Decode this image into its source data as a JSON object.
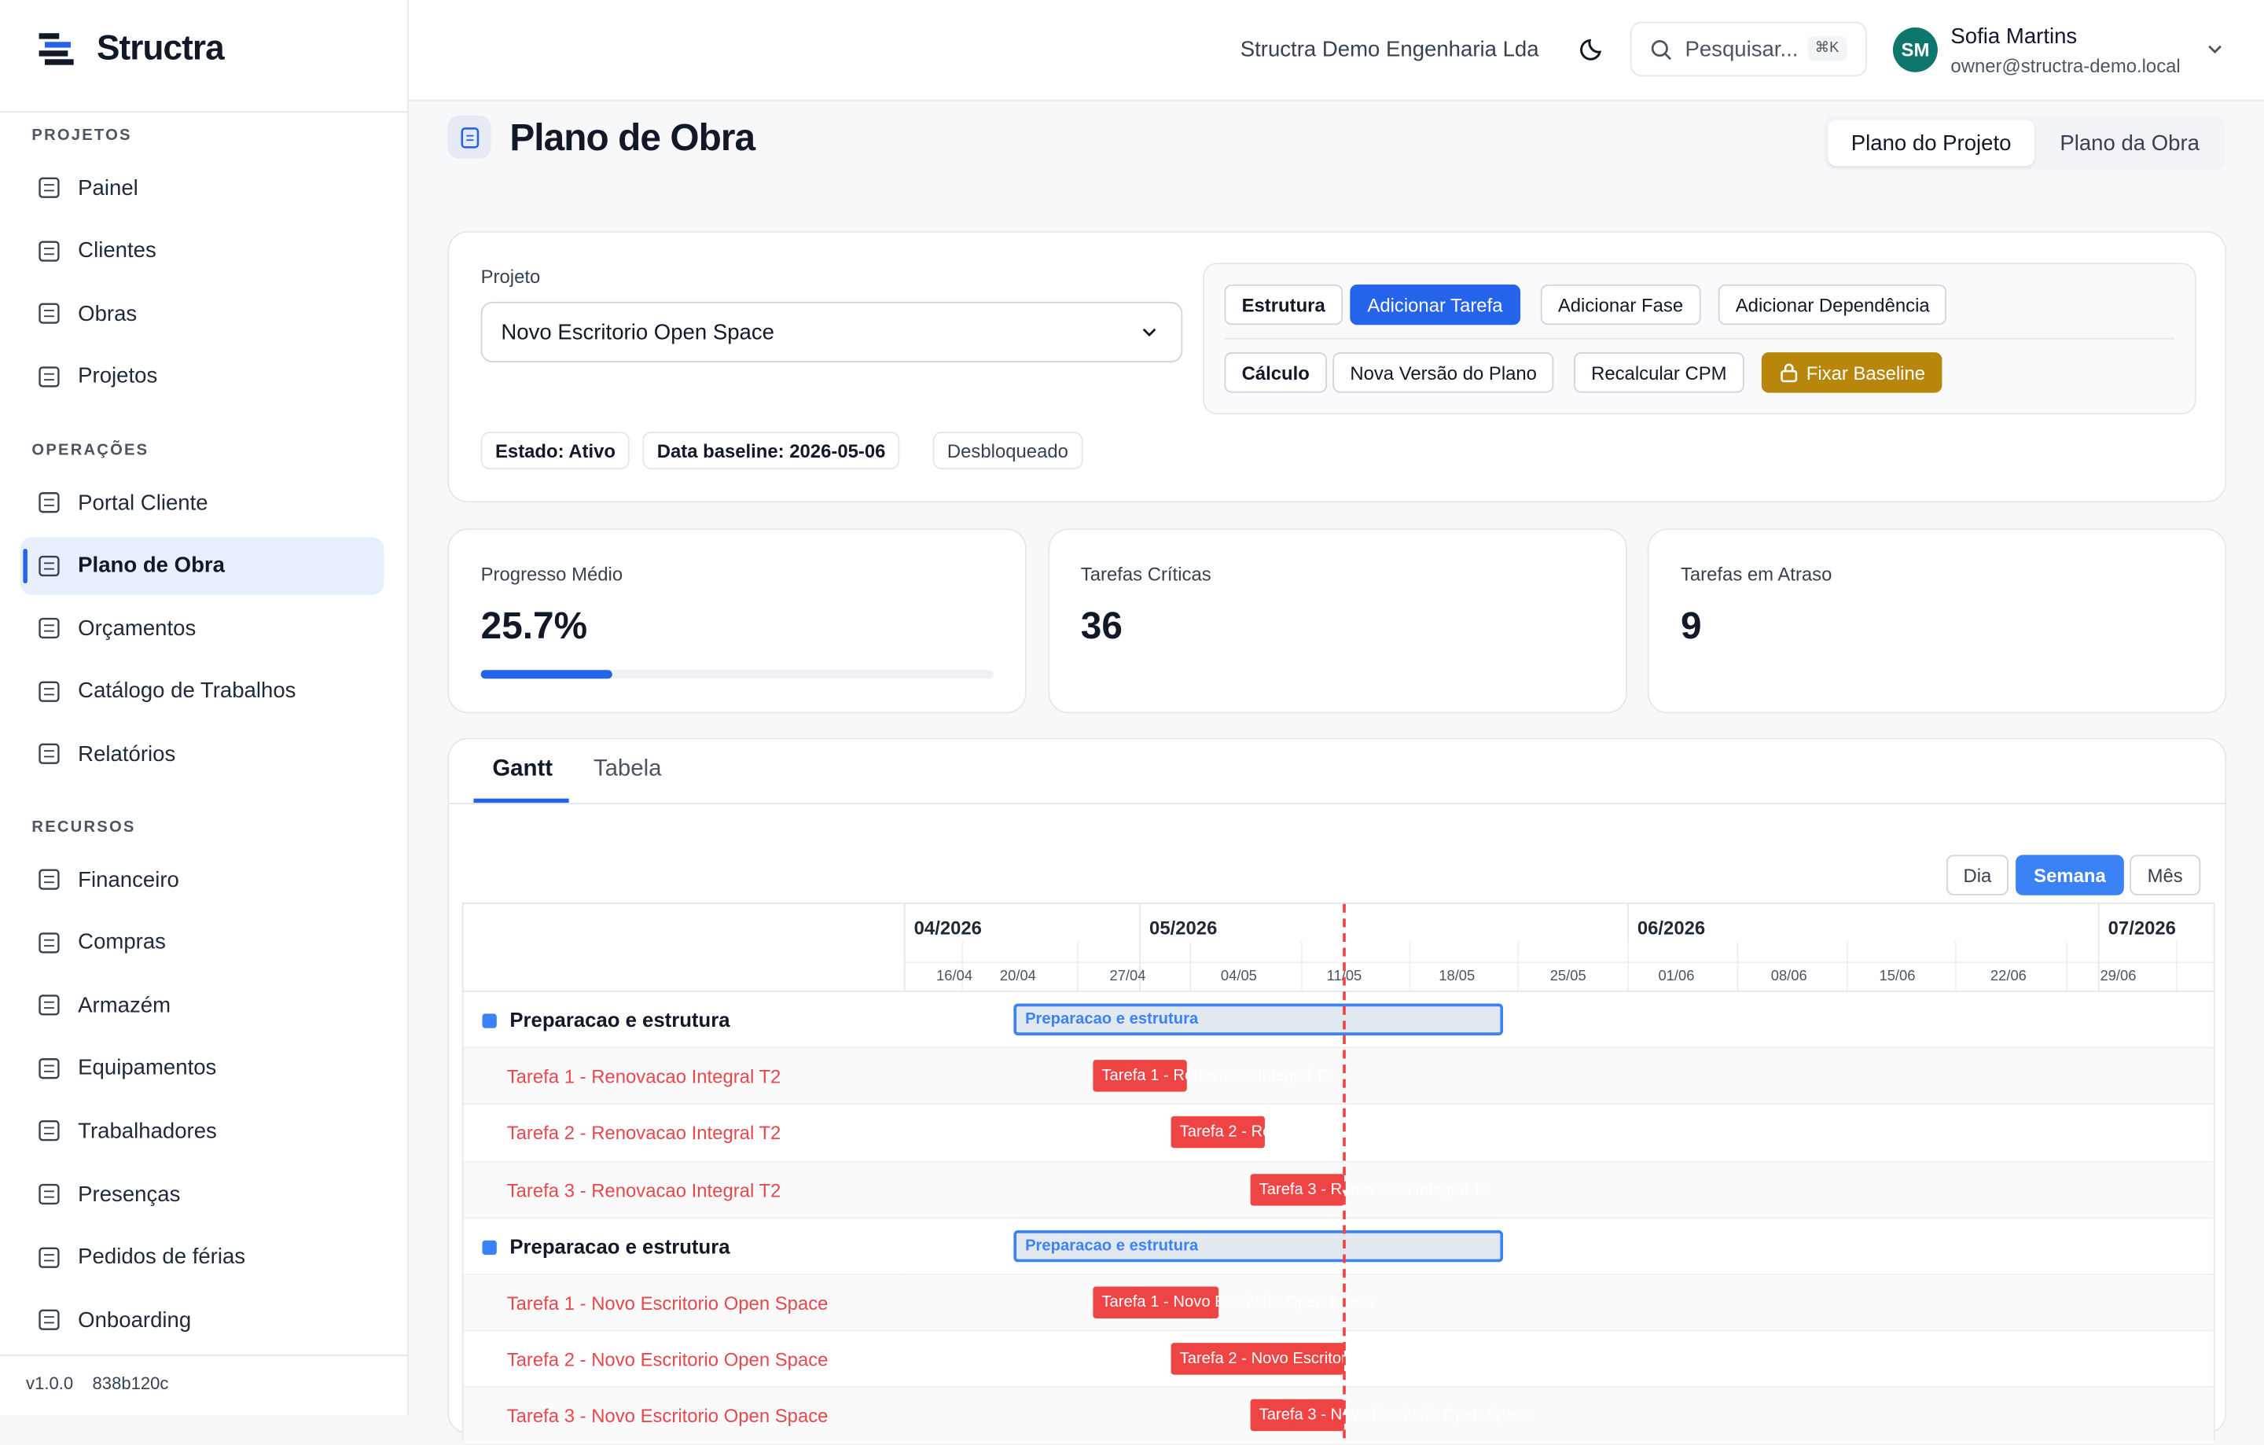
{
  "sidebar": {
    "brand": "Structra",
    "sections": [
      {
        "title": "PROJETOS",
        "items": [
          "Painel",
          "Clientes",
          "Obras",
          "Projetos"
        ]
      },
      {
        "title": "OPERAÇÕES",
        "items": [
          "Portal Cliente",
          "Plano de Obra",
          "Orçamentos",
          "Catálogo de Trabalhos",
          "Relatórios"
        ]
      },
      {
        "title": "RECURSOS",
        "items": [
          "Financeiro",
          "Compras",
          "Armazém",
          "Equipamentos",
          "Trabalhadores",
          "Presenças",
          "Pedidos de férias",
          "Onboarding"
        ]
      }
    ],
    "version": "v1.0.0",
    "build": "838b120c"
  },
  "topbar": {
    "company": "Structra Demo Engenharia Lda",
    "search": "Pesquisar...",
    "shortcut": "⌘K",
    "avatar": "SM",
    "user": "Sofia Martins",
    "email": "owner@structra-demo.local"
  },
  "page": {
    "title": "Plano de Obra",
    "tabs": [
      "Plano do Projeto",
      "Plano da Obra"
    ]
  },
  "project": {
    "label": "Projeto",
    "selected": "Novo Escritorio Open Space",
    "badges": [
      "Estado: Ativo",
      "Data baseline: 2026-05-06",
      "Desbloqueado"
    ],
    "structure_label": "Estrutura",
    "structure_actions": [
      "Adicionar Tarefa",
      "Adicionar Fase",
      "Adicionar Dependência"
    ],
    "calc_label": "Cálculo",
    "calc_actions": [
      "Nova Versão do Plano",
      "Recalcular CPM",
      "Fixar Baseline"
    ]
  },
  "stats": [
    {
      "label": "Progresso Médio",
      "value": 25.7,
      "value_label": "25.7%"
    },
    {
      "label": "Tarefas Críticas",
      "value": 36
    },
    {
      "label": "Tarefas em Atraso",
      "value": 9
    }
  ],
  "gantt": {
    "tabs": [
      "Gantt",
      "Tabela"
    ],
    "scales": [
      "Dia",
      "Semana",
      "Mês"
    ],
    "months": [
      "04/2026",
      "05/2026",
      "06/2026",
      "07/2026"
    ],
    "weeks": [
      "16/04",
      "20/04",
      "27/04",
      "04/05",
      "11/05",
      "18/05",
      "25/05",
      "01/06",
      "08/06",
      "15/06",
      "22/06",
      "29/06"
    ],
    "rows": [
      {
        "name": "Preparacao e estrutura",
        "kind": "phase"
      },
      {
        "name": "Tarefa 1 - Renovacao Integral T2",
        "kind": "task"
      },
      {
        "name": "Tarefa 2 - Renovacao Integral T2",
        "kind": "task"
      },
      {
        "name": "Tarefa 3 - Renovacao Integral T2",
        "kind": "task"
      },
      {
        "name": "Preparacao e estrutura",
        "kind": "phase"
      },
      {
        "name": "Tarefa 1 - Novo Escritorio Open Space",
        "kind": "task"
      },
      {
        "name": "Tarefa 2 - Novo Escritorio Open Space",
        "kind": "task"
      },
      {
        "name": "Tarefa 3 - Novo Escritorio Open Space",
        "kind": "task"
      }
    ]
  }
}
